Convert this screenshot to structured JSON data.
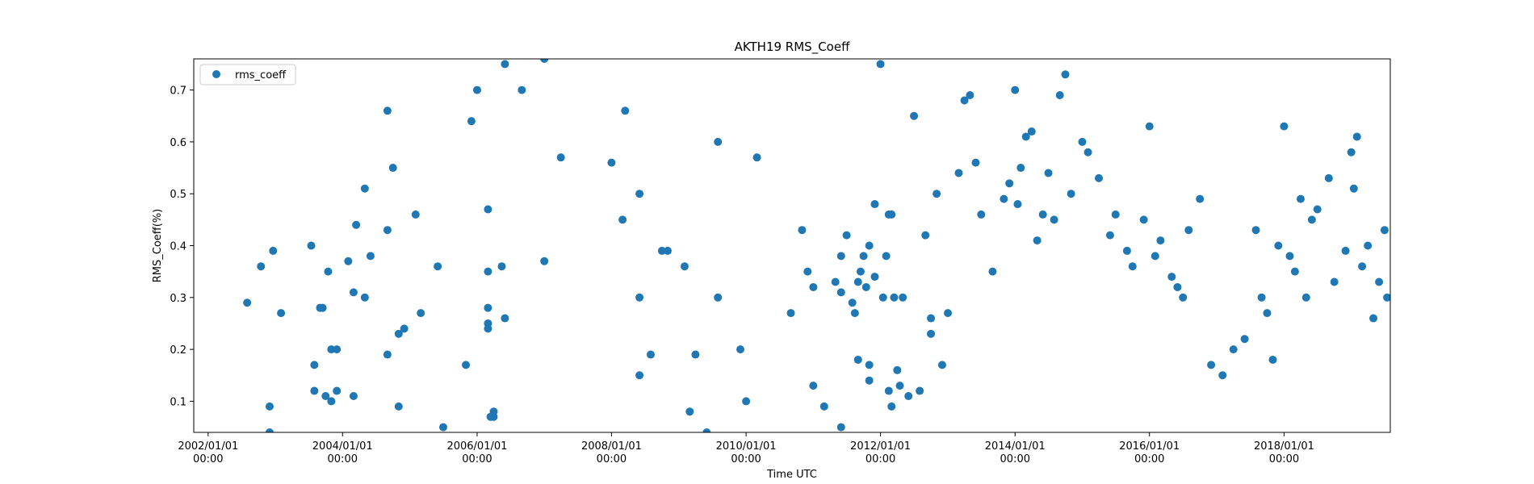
{
  "chart_data": {
    "type": "scatter",
    "title": "AKTH19 RMS_Coeff",
    "xlabel": "Time UTC",
    "ylabel": "RMS_Coeff(%)",
    "xlim": [
      "2001-10-15",
      "2019-08-01"
    ],
    "ylim": [
      0.04,
      0.76
    ],
    "grid": false,
    "legend_position": "top-left",
    "colors": {
      "series": "#1f77b4"
    },
    "xticks": [
      {
        "date": "2002-01-01",
        "label": [
          "2002/01/01",
          "00:00"
        ]
      },
      {
        "date": "2004-01-01",
        "label": [
          "2004/01/01",
          "00:00"
        ]
      },
      {
        "date": "2006-01-01",
        "label": [
          "2006/01/01",
          "00:00"
        ]
      },
      {
        "date": "2008-01-01",
        "label": [
          "2008/01/01",
          "00:00"
        ]
      },
      {
        "date": "2010-01-01",
        "label": [
          "2010/01/01",
          "00:00"
        ]
      },
      {
        "date": "2012-01-01",
        "label": [
          "2012/01/01",
          "00:00"
        ]
      },
      {
        "date": "2014-01-01",
        "label": [
          "2014/01/01",
          "00:00"
        ]
      },
      {
        "date": "2016-01-01",
        "label": [
          "2016/01/01",
          "00:00"
        ]
      },
      {
        "date": "2018-01-01",
        "label": [
          "2018/01/01",
          "00:00"
        ]
      }
    ],
    "yticks": [
      0.1,
      0.2,
      0.3,
      0.4,
      0.5,
      0.6,
      0.7
    ],
    "series": [
      {
        "name": "rms_coeff",
        "points": [
          [
            "2002-08-01",
            0.29
          ],
          [
            "2002-10-15",
            0.36
          ],
          [
            "2002-12-01",
            0.09
          ],
          [
            "2002-12-01",
            0.04
          ],
          [
            "2002-12-20",
            0.39
          ],
          [
            "2003-02-01",
            0.27
          ],
          [
            "2003-07-15",
            0.4
          ],
          [
            "2003-08-01",
            0.17
          ],
          [
            "2003-08-01",
            0.12
          ],
          [
            "2003-09-01",
            0.28
          ],
          [
            "2003-09-15",
            0.28
          ],
          [
            "2003-10-15",
            0.35
          ],
          [
            "2003-10-01",
            0.11
          ],
          [
            "2003-11-01",
            0.1
          ],
          [
            "2003-11-01",
            0.2
          ],
          [
            "2003-12-01",
            0.2
          ],
          [
            "2003-12-01",
            0.12
          ],
          [
            "2004-02-01",
            0.37
          ],
          [
            "2004-03-01",
            0.31
          ],
          [
            "2004-03-01",
            0.11
          ],
          [
            "2004-03-15",
            0.44
          ],
          [
            "2004-05-01",
            0.3
          ],
          [
            "2004-05-01",
            0.51
          ],
          [
            "2004-06-01",
            0.38
          ],
          [
            "2004-09-01",
            0.66
          ],
          [
            "2004-09-01",
            0.43
          ],
          [
            "2004-09-01",
            0.19
          ],
          [
            "2004-10-01",
            0.55
          ],
          [
            "2004-11-01",
            0.23
          ],
          [
            "2004-11-01",
            0.09
          ],
          [
            "2004-12-01",
            0.24
          ],
          [
            "2005-02-01",
            0.46
          ],
          [
            "2005-03-01",
            0.27
          ],
          [
            "2005-06-01",
            0.36
          ],
          [
            "2005-07-01",
            0.05
          ],
          [
            "2005-11-01",
            0.17
          ],
          [
            "2005-12-01",
            0.64
          ],
          [
            "2006-01-01",
            0.7
          ],
          [
            "2006-03-01",
            0.47
          ],
          [
            "2006-03-01",
            0.35
          ],
          [
            "2006-03-01",
            0.28
          ],
          [
            "2006-03-01",
            0.25
          ],
          [
            "2006-03-01",
            0.24
          ],
          [
            "2006-03-15",
            0.07
          ],
          [
            "2006-04-01",
            0.08
          ],
          [
            "2006-04-01",
            0.07
          ],
          [
            "2006-05-15",
            0.36
          ],
          [
            "2006-06-01",
            0.26
          ],
          [
            "2006-06-01",
            0.75
          ],
          [
            "2006-09-01",
            0.7
          ],
          [
            "2007-01-01",
            0.76
          ],
          [
            "2007-01-01",
            0.37
          ],
          [
            "2007-04-01",
            0.57
          ],
          [
            "2008-01-01",
            0.56
          ],
          [
            "2008-03-01",
            0.45
          ],
          [
            "2008-03-15",
            0.66
          ],
          [
            "2008-06-01",
            0.3
          ],
          [
            "2008-06-01",
            0.15
          ],
          [
            "2008-06-01",
            0.5
          ],
          [
            "2008-08-01",
            0.19
          ],
          [
            "2008-10-01",
            0.39
          ],
          [
            "2008-11-01",
            0.39
          ],
          [
            "2009-02-01",
            0.36
          ],
          [
            "2009-03-01",
            0.08
          ],
          [
            "2009-04-01",
            0.19
          ],
          [
            "2009-06-01",
            0.04
          ],
          [
            "2009-08-01",
            0.3
          ],
          [
            "2009-08-01",
            0.6
          ],
          [
            "2009-12-01",
            0.2
          ],
          [
            "2010-01-01",
            0.1
          ],
          [
            "2010-03-01",
            0.57
          ],
          [
            "2010-09-01",
            0.27
          ],
          [
            "2010-11-01",
            0.43
          ],
          [
            "2010-12-01",
            0.35
          ],
          [
            "2011-01-01",
            0.32
          ],
          [
            "2011-01-01",
            0.13
          ],
          [
            "2011-03-01",
            0.09
          ],
          [
            "2011-05-01",
            0.33
          ],
          [
            "2011-06-01",
            0.38
          ],
          [
            "2011-06-01",
            0.05
          ],
          [
            "2011-06-01",
            0.31
          ],
          [
            "2011-07-01",
            0.42
          ],
          [
            "2011-08-01",
            0.29
          ],
          [
            "2011-08-15",
            0.27
          ],
          [
            "2011-09-01",
            0.18
          ],
          [
            "2011-09-01",
            0.33
          ],
          [
            "2011-09-15",
            0.35
          ],
          [
            "2011-10-01",
            0.38
          ],
          [
            "2011-10-15",
            0.32
          ],
          [
            "2011-11-01",
            0.14
          ],
          [
            "2011-11-01",
            0.17
          ],
          [
            "2011-11-01",
            0.4
          ],
          [
            "2011-12-01",
            0.34
          ],
          [
            "2011-12-01",
            0.48
          ],
          [
            "2012-01-01",
            0.75
          ],
          [
            "2012-01-15",
            0.3
          ],
          [
            "2012-02-01",
            0.38
          ],
          [
            "2012-02-15",
            0.46
          ],
          [
            "2012-02-15",
            0.12
          ],
          [
            "2012-03-01",
            0.46
          ],
          [
            "2012-03-01",
            0.09
          ],
          [
            "2012-03-15",
            0.3
          ],
          [
            "2012-04-01",
            0.16
          ],
          [
            "2012-04-15",
            0.13
          ],
          [
            "2012-05-01",
            0.3
          ],
          [
            "2012-06-01",
            0.11
          ],
          [
            "2012-07-01",
            0.65
          ],
          [
            "2012-08-01",
            0.12
          ],
          [
            "2012-09-01",
            0.42
          ],
          [
            "2012-10-01",
            0.23
          ],
          [
            "2012-10-01",
            0.26
          ],
          [
            "2012-11-01",
            0.5
          ],
          [
            "2012-12-01",
            0.17
          ],
          [
            "2013-01-01",
            0.27
          ],
          [
            "2013-03-01",
            0.54
          ],
          [
            "2013-04-01",
            0.68
          ],
          [
            "2013-05-01",
            0.69
          ],
          [
            "2013-06-01",
            0.56
          ],
          [
            "2013-07-01",
            0.46
          ],
          [
            "2013-09-01",
            0.35
          ],
          [
            "2013-11-01",
            0.49
          ],
          [
            "2013-12-01",
            0.52
          ],
          [
            "2014-01-01",
            0.7
          ],
          [
            "2014-01-15",
            0.48
          ],
          [
            "2014-02-01",
            0.55
          ],
          [
            "2014-03-01",
            0.61
          ],
          [
            "2014-04-01",
            0.62
          ],
          [
            "2014-05-01",
            0.41
          ],
          [
            "2014-06-01",
            0.46
          ],
          [
            "2014-07-01",
            0.54
          ],
          [
            "2014-08-01",
            0.45
          ],
          [
            "2014-09-01",
            0.69
          ],
          [
            "2014-10-01",
            0.73
          ],
          [
            "2014-11-01",
            0.5
          ],
          [
            "2015-01-01",
            0.6
          ],
          [
            "2015-02-01",
            0.58
          ],
          [
            "2015-04-01",
            0.53
          ],
          [
            "2015-06-01",
            0.42
          ],
          [
            "2015-07-01",
            0.46
          ],
          [
            "2015-09-01",
            0.39
          ],
          [
            "2015-10-01",
            0.36
          ],
          [
            "2015-12-01",
            0.45
          ],
          [
            "2016-01-01",
            0.63
          ],
          [
            "2016-02-01",
            0.38
          ],
          [
            "2016-03-01",
            0.41
          ],
          [
            "2016-05-01",
            0.34
          ],
          [
            "2016-06-01",
            0.32
          ],
          [
            "2016-07-01",
            0.3
          ],
          [
            "2016-08-01",
            0.43
          ],
          [
            "2016-10-01",
            0.49
          ],
          [
            "2016-12-01",
            0.17
          ],
          [
            "2017-02-01",
            0.15
          ],
          [
            "2017-04-01",
            0.2
          ],
          [
            "2017-06-01",
            0.22
          ],
          [
            "2017-08-01",
            0.43
          ],
          [
            "2017-09-01",
            0.3
          ],
          [
            "2017-10-01",
            0.27
          ],
          [
            "2017-11-01",
            0.18
          ],
          [
            "2017-12-01",
            0.4
          ],
          [
            "2018-01-01",
            0.63
          ],
          [
            "2018-02-01",
            0.38
          ],
          [
            "2018-03-01",
            0.35
          ],
          [
            "2018-04-01",
            0.49
          ],
          [
            "2018-05-01",
            0.3
          ],
          [
            "2018-06-01",
            0.45
          ],
          [
            "2018-07-01",
            0.47
          ],
          [
            "2018-09-01",
            0.53
          ],
          [
            "2018-10-01",
            0.33
          ],
          [
            "2018-12-01",
            0.39
          ],
          [
            "2019-01-01",
            0.58
          ],
          [
            "2019-01-15",
            0.51
          ],
          [
            "2019-02-01",
            0.61
          ],
          [
            "2019-03-01",
            0.36
          ],
          [
            "2019-04-01",
            0.4
          ],
          [
            "2019-05-01",
            0.26
          ],
          [
            "2019-06-01",
            0.33
          ],
          [
            "2019-07-01",
            0.43
          ],
          [
            "2019-07-15",
            0.3
          ]
        ]
      }
    ]
  }
}
